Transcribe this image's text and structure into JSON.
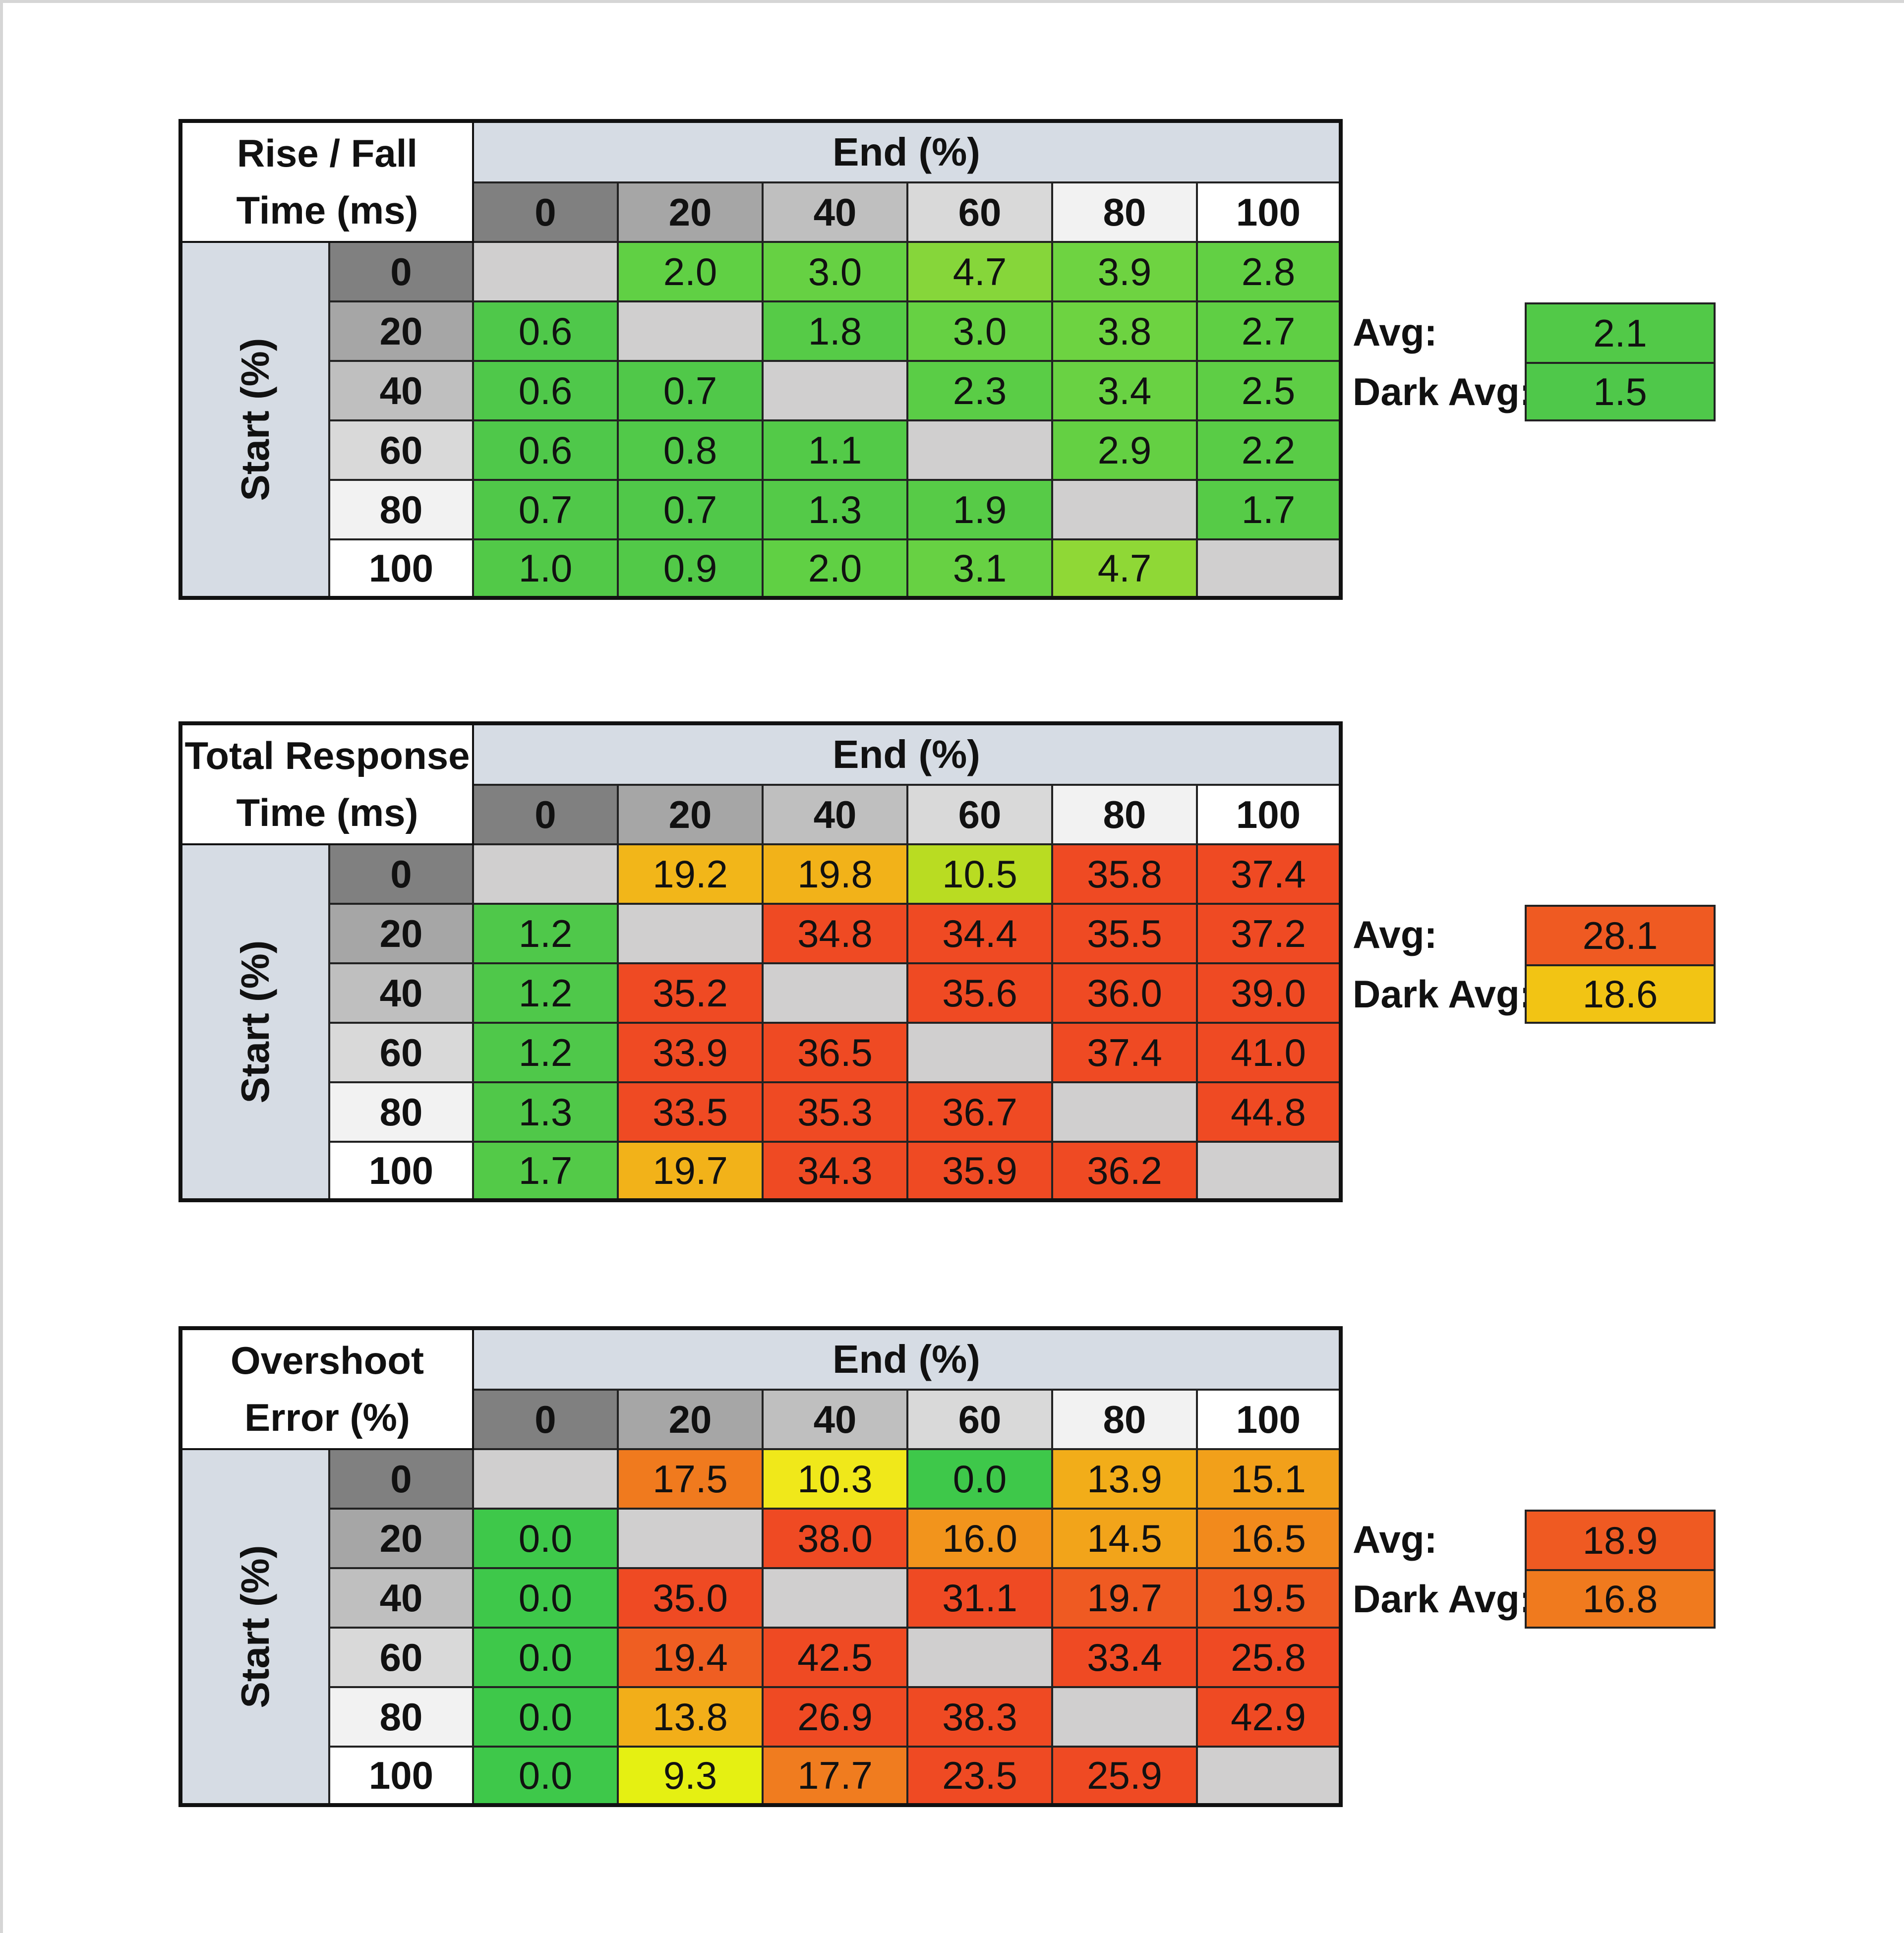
{
  "colors": {
    "page_border": "#d6d6d6",
    "header_band": "#d6dce4",
    "diagonal": "#d0cfcf",
    "green": "#4fc84a",
    "orange_red": "#ef4a23",
    "level_shades": [
      "#808080",
      "#a6a6a6",
      "#bfbfbf",
      "#d9d9d9",
      "#f2f2f2",
      "#ffffff"
    ]
  },
  "chart_data": [
    {
      "type": "heatmap",
      "title_lines": [
        "Rise / Fall",
        "Time (ms)"
      ],
      "xlabel": "End (%)",
      "ylabel": "Start (%)",
      "x": [
        "0",
        "20",
        "40",
        "60",
        "80",
        "100"
      ],
      "y": [
        "0",
        "20",
        "40",
        "60",
        "80",
        "100"
      ],
      "values": [
        [
          null,
          "2.0",
          "3.0",
          "4.7",
          "3.9",
          "2.8"
        ],
        [
          "0.6",
          null,
          "1.8",
          "3.0",
          "3.8",
          "2.7"
        ],
        [
          "0.6",
          "0.7",
          null,
          "2.3",
          "3.4",
          "2.5"
        ],
        [
          "0.6",
          "0.8",
          "1.1",
          null,
          "2.9",
          "2.2"
        ],
        [
          "0.7",
          "0.7",
          "1.3",
          "1.9",
          null,
          "1.7"
        ],
        [
          "1.0",
          "0.9",
          "2.0",
          "3.1",
          "4.7",
          null
        ]
      ],
      "cell_colors": [
        [
          null,
          "#60d044",
          "#66d143",
          "#86d63a",
          "#6ed341",
          "#62d044"
        ],
        [
          "#4fc84a",
          null,
          "#56cb47",
          "#66d143",
          "#6dd341",
          "#5fcf44"
        ],
        [
          "#4fc84a",
          "#50c849",
          null,
          "#5acd46",
          "#69d243",
          "#5ece45"
        ],
        [
          "#4fc84a",
          "#51c949",
          "#53ca48",
          null,
          "#64d043",
          "#59cc46"
        ],
        [
          "#50c849",
          "#50c849",
          "#54ca48",
          "#57cb47",
          null,
          "#56cb47"
        ],
        [
          "#52c948",
          "#52c948",
          "#60d044",
          "#67d143",
          "#8fd836",
          null
        ]
      ],
      "avg_label": "Avg:",
      "avg_value": "2.1",
      "avg_color": "#52c948",
      "dark_avg_label": "Dark Avg:",
      "dark_avg_value": "1.5",
      "dark_avg_color": "#4fc84a"
    },
    {
      "type": "heatmap",
      "title_lines": [
        "Total Response",
        "Time (ms)"
      ],
      "xlabel": "End (%)",
      "ylabel": "Start (%)",
      "x": [
        "0",
        "20",
        "40",
        "60",
        "80",
        "100"
      ],
      "y": [
        "0",
        "20",
        "40",
        "60",
        "80",
        "100"
      ],
      "values": [
        [
          null,
          "19.2",
          "19.8",
          "10.5",
          "35.8",
          "37.4"
        ],
        [
          "1.2",
          null,
          "34.8",
          "34.4",
          "35.5",
          "37.2"
        ],
        [
          "1.2",
          "35.2",
          null,
          "35.6",
          "36.0",
          "39.0"
        ],
        [
          "1.2",
          "33.9",
          "36.5",
          null,
          "37.4",
          "41.0"
        ],
        [
          "1.3",
          "33.5",
          "35.3",
          "36.7",
          null,
          "44.8"
        ],
        [
          "1.7",
          "19.7",
          "34.3",
          "35.9",
          "36.2",
          null
        ]
      ],
      "cell_colors": [
        [
          null,
          "#f2b619",
          "#f2b219",
          "#b9dc22",
          "#ef4a23",
          "#ef4a23"
        ],
        [
          "#4fc84a",
          null,
          "#ef4a23",
          "#ef4a23",
          "#ef4a23",
          "#ef4a23"
        ],
        [
          "#4fc84a",
          "#ef4a23",
          null,
          "#ef4a23",
          "#ef4a23",
          "#ef4a23"
        ],
        [
          "#4fc84a",
          "#ef4a23",
          "#ef4a23",
          null,
          "#ef4a23",
          "#ef4a23"
        ],
        [
          "#50c849",
          "#ef4a23",
          "#ef4a23",
          "#ef4a23",
          null,
          "#ef4a23"
        ],
        [
          "#53ca48",
          "#f2b219",
          "#ef4a23",
          "#ef4a23",
          "#ef4a23",
          null
        ]
      ],
      "avg_label": "Avg:",
      "avg_value": "28.1",
      "avg_color": "#ef5a22",
      "dark_avg_label": "Dark Avg:",
      "dark_avg_value": "18.6",
      "dark_avg_color": "#f2c414"
    },
    {
      "type": "heatmap",
      "title_lines": [
        "Overshoot",
        "Error (%)"
      ],
      "xlabel": "End (%)",
      "ylabel": "Start (%)",
      "x": [
        "0",
        "20",
        "40",
        "60",
        "80",
        "100"
      ],
      "y": [
        "0",
        "20",
        "40",
        "60",
        "80",
        "100"
      ],
      "values": [
        [
          null,
          "17.5",
          "10.3",
          "0.0",
          "13.9",
          "15.1"
        ],
        [
          "0.0",
          null,
          "38.0",
          "16.0",
          "14.5",
          "16.5"
        ],
        [
          "0.0",
          "35.0",
          null,
          "31.1",
          "19.7",
          "19.5"
        ],
        [
          "0.0",
          "19.4",
          "42.5",
          null,
          "33.4",
          "25.8"
        ],
        [
          "0.0",
          "13.8",
          "26.9",
          "38.3",
          null,
          "42.9"
        ],
        [
          "0.0",
          "9.3",
          "17.7",
          "23.5",
          "25.9",
          null
        ]
      ],
      "cell_colors": [
        [
          null,
          "#f07a1e",
          "#f0e81a",
          "#3ec84a",
          "#f2ad19",
          "#f2a01a"
        ],
        [
          "#3ec84a",
          null,
          "#ef4a23",
          "#f2941c",
          "#f2a41a",
          "#f28a1c"
        ],
        [
          "#3ec84a",
          "#ef4a23",
          null,
          "#ef4a23",
          "#ef5a22",
          "#ef5c22"
        ],
        [
          "#3ec84a",
          "#ef5e22",
          "#ef4a23",
          null,
          "#ef4a23",
          "#ef4a23"
        ],
        [
          "#3ec84a",
          "#f2ae19",
          "#ef4a23",
          "#ef4a23",
          null,
          "#ef4a23"
        ],
        [
          "#3ec84a",
          "#e5f012",
          "#f07c1f",
          "#ef4a23",
          "#ef4a23",
          null
        ]
      ],
      "avg_label": "Avg:",
      "avg_value": "18.9",
      "avg_color": "#ef5a22",
      "dark_avg_label": "Dark Avg:",
      "dark_avg_value": "16.8",
      "dark_avg_color": "#f07a1e"
    }
  ]
}
